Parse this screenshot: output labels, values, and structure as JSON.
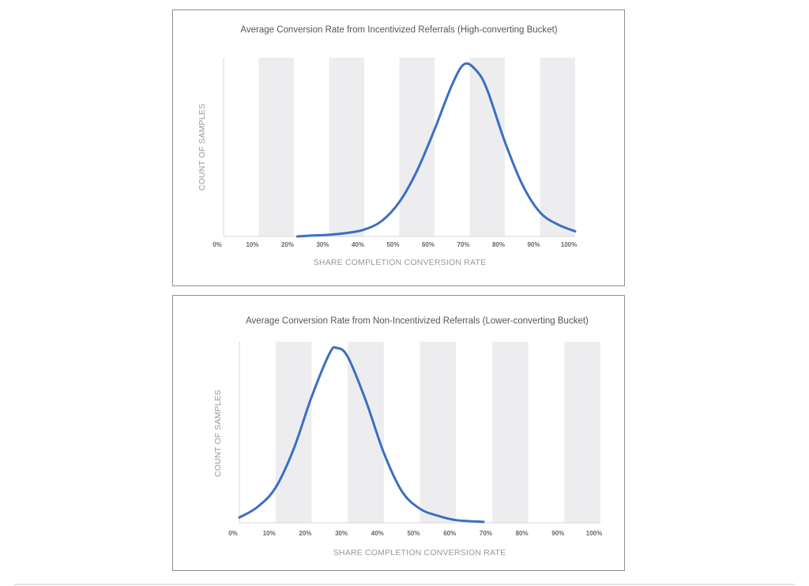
{
  "chart_data": [
    {
      "type": "line",
      "title": "Average Conversion Rate from Incentivized Referrals (High-converting Bucket)",
      "xlabel": "SHARE COMPLETION CONVERSION RATE",
      "ylabel": "COUNT OF SAMPLES",
      "xticks": [
        "0%",
        "10%",
        "20%",
        "30%",
        "40%",
        "50%",
        "60%",
        "70%",
        "80%",
        "90%",
        "100%"
      ],
      "xlim": [
        0,
        100
      ],
      "ylim": [
        0,
        1
      ],
      "grid": "alternating vertical bands",
      "line_color": "#3b6fc2",
      "band_color": "#ededef",
      "x": [
        21,
        25,
        30,
        35,
        40,
        45,
        50,
        55,
        60,
        65,
        68.5,
        72,
        75,
        80,
        85,
        90,
        95,
        100
      ],
      "y": [
        0,
        0.005,
        0.01,
        0.02,
        0.04,
        0.09,
        0.2,
        0.38,
        0.62,
        0.88,
        1.0,
        0.96,
        0.85,
        0.55,
        0.3,
        0.14,
        0.07,
        0.03
      ]
    },
    {
      "type": "line",
      "title": "Average Conversion Rate from Non-Incentivized Referrals (Lower-converting Bucket)",
      "xlabel": "SHARE COMPLETION CONVERSION RATE",
      "ylabel": "COUNT OF SAMPLES",
      "xticks": [
        "0%",
        "10%",
        "20%",
        "30%",
        "40%",
        "50%",
        "60%",
        "70%",
        "80%",
        "90%",
        "100%"
      ],
      "xlim": [
        0,
        100
      ],
      "ylim": [
        0,
        1
      ],
      "grid": "alternating vertical bands",
      "line_color": "#3b6fc2",
      "band_color": "#ededef",
      "x": [
        0,
        5,
        10,
        15,
        20,
        25,
        27,
        30,
        35,
        40,
        45,
        50,
        55,
        60,
        67.6
      ],
      "y": [
        0.03,
        0.09,
        0.2,
        0.42,
        0.72,
        0.97,
        1.0,
        0.95,
        0.7,
        0.4,
        0.18,
        0.08,
        0.04,
        0.015,
        0.005
      ]
    }
  ]
}
